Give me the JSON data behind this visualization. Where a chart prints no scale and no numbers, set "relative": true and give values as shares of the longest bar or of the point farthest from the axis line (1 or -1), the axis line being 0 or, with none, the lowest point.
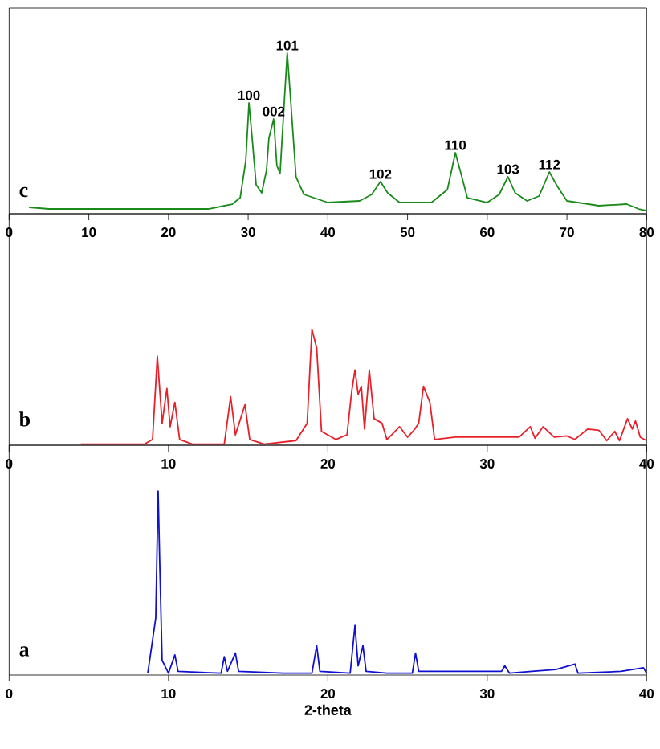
{
  "chart_data": [
    {
      "type": "line",
      "relative": true,
      "color": "#1a8a1a",
      "xlim": [
        0,
        80
      ],
      "xticks": [
        0,
        10,
        20,
        30,
        40,
        50,
        60,
        70,
        80
      ],
      "x": [
        2.5,
        5,
        10,
        15,
        20,
        25,
        28,
        29,
        29.7,
        30.1,
        30.5,
        31,
        31.7,
        32.3,
        32.6,
        32.9,
        33.2,
        33.6,
        34,
        34.5,
        34.9,
        35.3,
        36,
        37,
        40,
        44,
        45.5,
        46.6,
        47.5,
        49,
        53,
        55,
        56,
        56.6,
        57.5,
        60,
        61.5,
        62.6,
        63.5,
        65,
        66.5,
        67.8,
        68.8,
        70,
        74,
        77.5,
        79,
        80
      ],
      "values": [
        0.04,
        0.03,
        0.03,
        0.03,
        0.03,
        0.03,
        0.06,
        0.1,
        0.33,
        0.69,
        0.47,
        0.18,
        0.13,
        0.27,
        0.47,
        0.53,
        0.59,
        0.3,
        0.25,
        0.67,
        1,
        0.73,
        0.23,
        0.12,
        0.07,
        0.08,
        0.12,
        0.2,
        0.13,
        0.07,
        0.07,
        0.15,
        0.38,
        0.27,
        0.1,
        0.07,
        0.12,
        0.23,
        0.13,
        0.08,
        0.11,
        0.26,
        0.17,
        0.08,
        0.05,
        0.06,
        0.03,
        0.02
      ],
      "annotations": [
        "c",
        {
          "text": "100",
          "x": 30.1,
          "y": 0.69
        },
        {
          "text": "002",
          "x": 33.2,
          "y": 0.59
        },
        {
          "text": "101",
          "x": 34.9,
          "y": 1
        },
        {
          "text": "102",
          "x": 46.6,
          "y": 0.2
        },
        {
          "text": "110",
          "x": 56,
          "y": 0.38
        },
        {
          "text": "103",
          "x": 62.6,
          "y": 0.23
        },
        {
          "text": "112",
          "x": 67.8,
          "y": 0.26
        }
      ]
    },
    {
      "type": "line",
      "relative": true,
      "color": "#e8202a",
      "xlim": [
        0,
        40
      ],
      "xticks": [
        0,
        10,
        20,
        30,
        40
      ],
      "x": [
        4.5,
        8.5,
        9.0,
        9.3,
        9.6,
        9.9,
        10.1,
        10.4,
        10.7,
        11.5,
        13.5,
        13.9,
        14.2,
        14.8,
        15.1,
        16,
        18,
        18.7,
        19.0,
        19.3,
        19.6,
        20.5,
        21.2,
        21.5,
        21.7,
        21.9,
        22.1,
        22.3,
        22.6,
        22.9,
        23.4,
        23.7,
        24.0,
        24.5,
        25.0,
        25.4,
        25.7,
        26.0,
        26.4,
        26.7,
        28,
        30,
        32,
        32.7,
        33.0,
        33.5,
        34.2,
        35,
        35.5,
        36.3,
        37,
        37.5,
        38.0,
        38.3,
        38.8,
        39.1,
        39.3,
        39.6,
        40
      ],
      "values": [
        0.01,
        0.01,
        0.05,
        0.77,
        0.19,
        0.49,
        0.16,
        0.37,
        0.05,
        0.01,
        0.01,
        0.42,
        0.09,
        0.35,
        0.05,
        0.01,
        0.04,
        0.19,
        1,
        0.84,
        0.12,
        0.05,
        0.09,
        0.47,
        0.65,
        0.44,
        0.51,
        0.14,
        0.65,
        0.23,
        0.19,
        0.05,
        0.09,
        0.16,
        0.07,
        0.13,
        0.19,
        0.51,
        0.37,
        0.05,
        0.07,
        0.07,
        0.07,
        0.16,
        0.06,
        0.16,
        0.07,
        0.08,
        0.05,
        0.14,
        0.13,
        0.04,
        0.12,
        0.04,
        0.23,
        0.14,
        0.21,
        0.07,
        0.04
      ],
      "annotations": [
        "b"
      ]
    },
    {
      "type": "line",
      "relative": true,
      "color": "#1010d0",
      "xlim": [
        0,
        40
      ],
      "xticks": [
        0,
        10,
        20,
        30,
        40
      ],
      "xlabel": "2-theta",
      "x": [
        8.7,
        9.2,
        9.35,
        9.45,
        9.6,
        10.0,
        10.4,
        10.6,
        13.3,
        13.5,
        13.7,
        14.2,
        14.4,
        17.2,
        19.0,
        19.3,
        19.5,
        21.4,
        21.7,
        21.9,
        22.2,
        22.4,
        23.7,
        25.3,
        25.5,
        25.7,
        30.9,
        31.1,
        31.4,
        32.8,
        34.3,
        35.5,
        35.7,
        38.4,
        39.8,
        40
      ],
      "values": [
        0.01,
        0.31,
        1,
        0.61,
        0.08,
        0.01,
        0.11,
        0.02,
        0.01,
        0.1,
        0.02,
        0.12,
        0.02,
        0.01,
        0.01,
        0.16,
        0.02,
        0.01,
        0.27,
        0.05,
        0.16,
        0.02,
        0.01,
        0.01,
        0.12,
        0.02,
        0.02,
        0.05,
        0.01,
        0.02,
        0.03,
        0.06,
        0.01,
        0.02,
        0.04,
        0.01
      ],
      "annotations": [
        "a"
      ]
    }
  ]
}
